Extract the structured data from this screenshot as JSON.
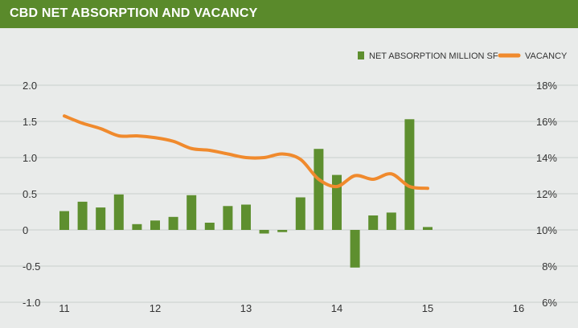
{
  "header": {
    "title": "CBD NET ABSORPTION AND VACANCY"
  },
  "colors": {
    "header_bg": "#5a8a2b",
    "bar": "#5e8f2f",
    "line": "#f08a2d",
    "grid": "#c9cfcc",
    "background": "#e9ebea"
  },
  "chart_data": {
    "type": "bar",
    "title": "CBD NET ABSORPTION AND VACANCY",
    "x_ticks": [
      "11",
      "12",
      "13",
      "14",
      "15",
      "16"
    ],
    "series": [
      {
        "name": "NET ABSORPTION MILLION SF",
        "type": "bar",
        "axis": "left",
        "values": [
          0.26,
          0.39,
          0.31,
          0.49,
          0.08,
          0.13,
          0.18,
          0.48,
          0.1,
          0.33,
          0.35,
          -0.05,
          -0.03,
          0.45,
          1.12,
          0.76,
          -0.52,
          0.2,
          0.24,
          1.53,
          0.04
        ]
      },
      {
        "name": "VACANCY",
        "type": "line",
        "axis": "right",
        "values": [
          16.3,
          15.9,
          15.6,
          15.2,
          15.2,
          15.1,
          14.9,
          14.5,
          14.4,
          14.2,
          14.0,
          14.0,
          14.2,
          13.9,
          12.8,
          12.4,
          13.0,
          12.8,
          13.1,
          12.4,
          12.3
        ]
      }
    ],
    "y_left": {
      "ticks": [
        "2.0",
        "1.5",
        "1.0",
        "0.5",
        "0",
        "-0.5",
        "-1.0"
      ],
      "min": -1.0,
      "max": 2.0
    },
    "y_right": {
      "ticks": [
        "18%",
        "16%",
        "14%",
        "12%",
        "10%",
        "8%",
        "6%"
      ],
      "min": 6,
      "max": 18
    },
    "grid": true,
    "legend_position": "top-right"
  }
}
